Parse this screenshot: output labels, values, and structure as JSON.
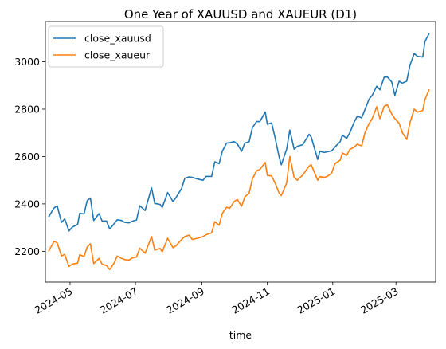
{
  "chart_data": {
    "type": "line",
    "title": "One Year of XAUUSD and XAUEUR (D1)",
    "xlabel": "time",
    "ylabel": "",
    "x_ticks": [
      "2024-05",
      "2024-07",
      "2024-09",
      "2024-11",
      "2025-01",
      "2025-03"
    ],
    "y_ticks": [
      2200,
      2400,
      2600,
      2800,
      3000
    ],
    "xlim": [
      "2024-04-08",
      "2025-04-07"
    ],
    "ylim": [
      2070,
      3170
    ],
    "grid": false,
    "legend": "top-left",
    "series": [
      {
        "name": "close_xauusd",
        "color": "#1f77b4",
        "points": [
          [
            "2024-04-11",
            2345
          ],
          [
            "2024-04-16",
            2383
          ],
          [
            "2024-04-19",
            2392
          ],
          [
            "2024-04-23",
            2322
          ],
          [
            "2024-04-26",
            2337
          ],
          [
            "2024-04-30",
            2286
          ],
          [
            "2024-05-03",
            2302
          ],
          [
            "2024-05-08",
            2313
          ],
          [
            "2024-05-10",
            2360
          ],
          [
            "2024-05-14",
            2358
          ],
          [
            "2024-05-17",
            2414
          ],
          [
            "2024-05-20",
            2425
          ],
          [
            "2024-05-23",
            2330
          ],
          [
            "2024-05-28",
            2359
          ],
          [
            "2024-05-31",
            2327
          ],
          [
            "2024-06-04",
            2328
          ],
          [
            "2024-06-07",
            2294
          ],
          [
            "2024-06-11",
            2316
          ],
          [
            "2024-06-14",
            2333
          ],
          [
            "2024-06-18",
            2330
          ],
          [
            "2024-06-21",
            2322
          ],
          [
            "2024-06-25",
            2320
          ],
          [
            "2024-06-28",
            2327
          ],
          [
            "2024-07-02",
            2332
          ],
          [
            "2024-07-05",
            2392
          ],
          [
            "2024-07-10",
            2372
          ],
          [
            "2024-07-16",
            2468
          ],
          [
            "2024-07-19",
            2402
          ],
          [
            "2024-07-24",
            2398
          ],
          [
            "2024-07-26",
            2385
          ],
          [
            "2024-07-31",
            2448
          ],
          [
            "2024-08-05",
            2410
          ],
          [
            "2024-08-08",
            2428
          ],
          [
            "2024-08-13",
            2465
          ],
          [
            "2024-08-16",
            2508
          ],
          [
            "2024-08-20",
            2514
          ],
          [
            "2024-08-23",
            2512
          ],
          [
            "2024-08-28",
            2505
          ],
          [
            "2024-09-02",
            2500
          ],
          [
            "2024-09-05",
            2516
          ],
          [
            "2024-09-10",
            2516
          ],
          [
            "2024-09-13",
            2578
          ],
          [
            "2024-09-17",
            2570
          ],
          [
            "2024-09-20",
            2622
          ],
          [
            "2024-09-24",
            2657
          ],
          [
            "2024-09-27",
            2658
          ],
          [
            "2024-10-01",
            2663
          ],
          [
            "2024-10-04",
            2653
          ],
          [
            "2024-10-08",
            2622
          ],
          [
            "2024-10-11",
            2657
          ],
          [
            "2024-10-15",
            2662
          ],
          [
            "2024-10-18",
            2721
          ],
          [
            "2024-10-22",
            2748
          ],
          [
            "2024-10-25",
            2747
          ],
          [
            "2024-10-30",
            2788
          ],
          [
            "2024-11-01",
            2736
          ],
          [
            "2024-11-05",
            2742
          ],
          [
            "2024-11-08",
            2684
          ],
          [
            "2024-11-12",
            2598
          ],
          [
            "2024-11-14",
            2565
          ],
          [
            "2024-11-19",
            2631
          ],
          [
            "2024-11-22",
            2712
          ],
          [
            "2024-11-26",
            2631
          ],
          [
            "2024-11-29",
            2643
          ],
          [
            "2024-12-04",
            2650
          ],
          [
            "2024-12-10",
            2694
          ],
          [
            "2024-12-12",
            2682
          ],
          [
            "2024-12-18",
            2588
          ],
          [
            "2024-12-20",
            2622
          ],
          [
            "2024-12-24",
            2617
          ],
          [
            "2024-12-27",
            2620
          ],
          [
            "2024-12-31",
            2624
          ],
          [
            "2025-01-03",
            2640
          ],
          [
            "2025-01-08",
            2663
          ],
          [
            "2025-01-10",
            2690
          ],
          [
            "2025-01-14",
            2677
          ],
          [
            "2025-01-17",
            2701
          ],
          [
            "2025-01-21",
            2745
          ],
          [
            "2025-01-24",
            2771
          ],
          [
            "2025-01-28",
            2763
          ],
          [
            "2025-01-31",
            2798
          ],
          [
            "2025-02-04",
            2843
          ],
          [
            "2025-02-07",
            2860
          ],
          [
            "2025-02-11",
            2897
          ],
          [
            "2025-02-14",
            2882
          ],
          [
            "2025-02-18",
            2935
          ],
          [
            "2025-02-21",
            2936
          ],
          [
            "2025-02-25",
            2915
          ],
          [
            "2025-02-28",
            2858
          ],
          [
            "2025-03-04",
            2918
          ],
          [
            "2025-03-07",
            2910
          ],
          [
            "2025-03-11",
            2918
          ],
          [
            "2025-03-14",
            2985
          ],
          [
            "2025-03-18",
            3035
          ],
          [
            "2025-03-21",
            3023
          ],
          [
            "2025-03-26",
            3020
          ],
          [
            "2025-03-28",
            3085
          ],
          [
            "2025-04-01",
            3120
          ]
        ]
      },
      {
        "name": "close_xaueur",
        "color": "#ff7f0e",
        "points": [
          [
            "2024-04-11",
            2200
          ],
          [
            "2024-04-16",
            2242
          ],
          [
            "2024-04-19",
            2236
          ],
          [
            "2024-04-23",
            2180
          ],
          [
            "2024-04-26",
            2187
          ],
          [
            "2024-04-30",
            2136
          ],
          [
            "2024-05-03",
            2146
          ],
          [
            "2024-05-08",
            2150
          ],
          [
            "2024-05-10",
            2185
          ],
          [
            "2024-05-14",
            2178
          ],
          [
            "2024-05-17",
            2218
          ],
          [
            "2024-05-20",
            2232
          ],
          [
            "2024-05-23",
            2148
          ],
          [
            "2024-05-28",
            2170
          ],
          [
            "2024-05-31",
            2145
          ],
          [
            "2024-06-04",
            2140
          ],
          [
            "2024-06-07",
            2123
          ],
          [
            "2024-06-11",
            2150
          ],
          [
            "2024-06-14",
            2180
          ],
          [
            "2024-06-18",
            2170
          ],
          [
            "2024-06-21",
            2165
          ],
          [
            "2024-06-25",
            2163
          ],
          [
            "2024-06-28",
            2172
          ],
          [
            "2024-07-02",
            2176
          ],
          [
            "2024-07-05",
            2213
          ],
          [
            "2024-07-10",
            2192
          ],
          [
            "2024-07-16",
            2262
          ],
          [
            "2024-07-19",
            2205
          ],
          [
            "2024-07-24",
            2212
          ],
          [
            "2024-07-26",
            2198
          ],
          [
            "2024-07-31",
            2255
          ],
          [
            "2024-08-05",
            2215
          ],
          [
            "2024-08-08",
            2224
          ],
          [
            "2024-08-13",
            2250
          ],
          [
            "2024-08-16",
            2262
          ],
          [
            "2024-08-20",
            2268
          ],
          [
            "2024-08-23",
            2250
          ],
          [
            "2024-08-28",
            2255
          ],
          [
            "2024-09-02",
            2262
          ],
          [
            "2024-09-05",
            2270
          ],
          [
            "2024-09-10",
            2278
          ],
          [
            "2024-09-13",
            2325
          ],
          [
            "2024-09-17",
            2310
          ],
          [
            "2024-09-20",
            2360
          ],
          [
            "2024-09-24",
            2386
          ],
          [
            "2024-09-27",
            2382
          ],
          [
            "2024-10-01",
            2410
          ],
          [
            "2024-10-04",
            2419
          ],
          [
            "2024-10-08",
            2390
          ],
          [
            "2024-10-11",
            2430
          ],
          [
            "2024-10-15",
            2445
          ],
          [
            "2024-10-18",
            2505
          ],
          [
            "2024-10-22",
            2540
          ],
          [
            "2024-10-25",
            2545
          ],
          [
            "2024-10-30",
            2575
          ],
          [
            "2024-11-01",
            2520
          ],
          [
            "2024-11-05",
            2518
          ],
          [
            "2024-11-08",
            2490
          ],
          [
            "2024-11-12",
            2445
          ],
          [
            "2024-11-14",
            2435
          ],
          [
            "2024-11-19",
            2488
          ],
          [
            "2024-11-22",
            2600
          ],
          [
            "2024-11-26",
            2512
          ],
          [
            "2024-11-29",
            2500
          ],
          [
            "2024-12-04",
            2522
          ],
          [
            "2024-12-10",
            2560
          ],
          [
            "2024-12-12",
            2565
          ],
          [
            "2024-12-18",
            2500
          ],
          [
            "2024-12-20",
            2515
          ],
          [
            "2024-12-24",
            2512
          ],
          [
            "2024-12-27",
            2516
          ],
          [
            "2024-12-31",
            2530
          ],
          [
            "2025-01-03",
            2570
          ],
          [
            "2025-01-08",
            2585
          ],
          [
            "2025-01-10",
            2615
          ],
          [
            "2025-01-14",
            2605
          ],
          [
            "2025-01-17",
            2630
          ],
          [
            "2025-01-21",
            2640
          ],
          [
            "2025-01-24",
            2652
          ],
          [
            "2025-01-28",
            2645
          ],
          [
            "2025-01-31",
            2700
          ],
          [
            "2025-02-04",
            2740
          ],
          [
            "2025-02-07",
            2762
          ],
          [
            "2025-02-11",
            2810
          ],
          [
            "2025-02-14",
            2760
          ],
          [
            "2025-02-18",
            2812
          ],
          [
            "2025-02-21",
            2818
          ],
          [
            "2025-02-25",
            2780
          ],
          [
            "2025-02-28",
            2760
          ],
          [
            "2025-03-04",
            2740
          ],
          [
            "2025-03-07",
            2700
          ],
          [
            "2025-03-11",
            2672
          ],
          [
            "2025-03-14",
            2742
          ],
          [
            "2025-03-18",
            2800
          ],
          [
            "2025-03-21",
            2788
          ],
          [
            "2025-03-26",
            2795
          ],
          [
            "2025-03-28",
            2840
          ],
          [
            "2025-04-01",
            2883
          ]
        ]
      }
    ]
  }
}
